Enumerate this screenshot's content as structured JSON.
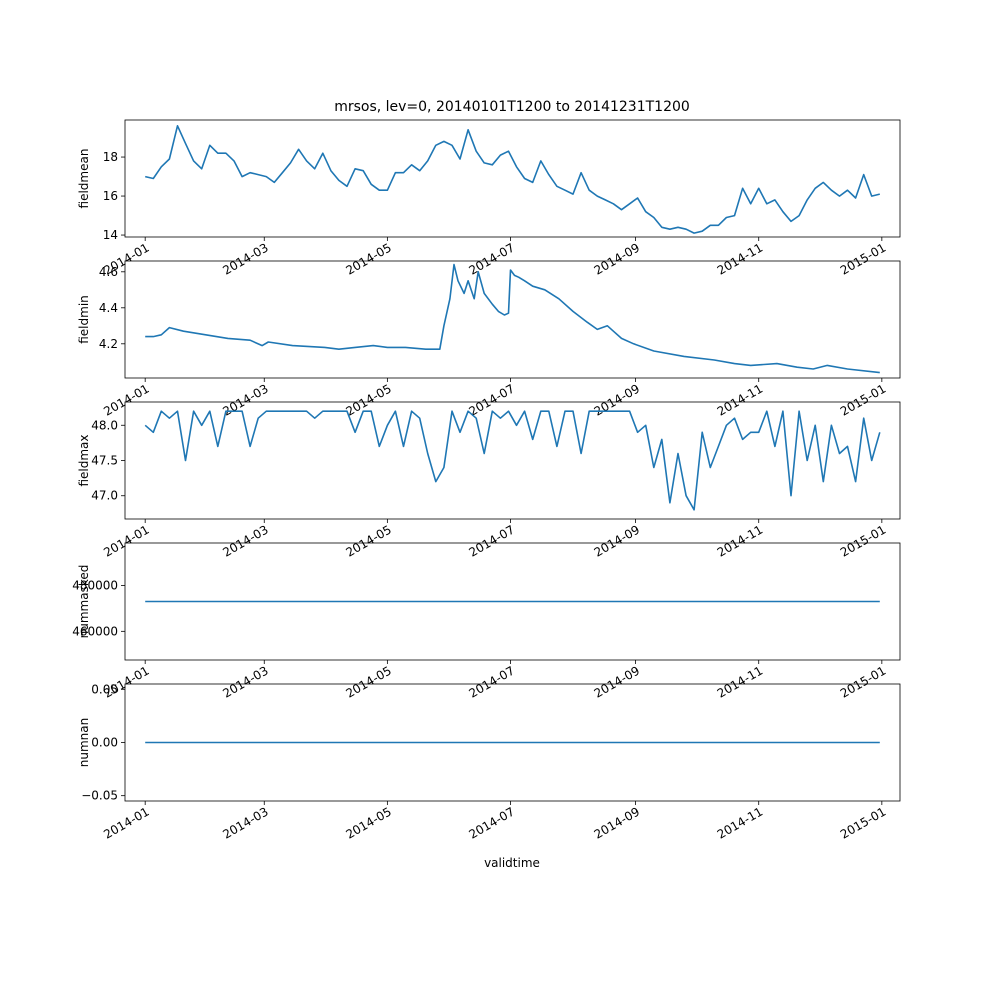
{
  "figure": {
    "title": "mrsos, lev=0, 20140101T1200 to 20141231T1200",
    "xlabel": "validtime",
    "line_color": "#1f77b4",
    "x_tick_labels": [
      "2014-01",
      "2014-03",
      "2014-05",
      "2014-07",
      "2014-09",
      "2014-11",
      "2015-01"
    ]
  },
  "chart_data": [
    {
      "type": "line",
      "ylabel": "fieldmean",
      "xlim": [
        "2013-12-22",
        "2015-01-10"
      ],
      "ylim": [
        13.9,
        19.9
      ],
      "yticks": [
        14,
        16,
        18
      ],
      "ytick_labels": [
        "14",
        "16",
        "18"
      ],
      "x": [
        "2014-01-01",
        "2014-01-05",
        "2014-01-09",
        "2014-01-13",
        "2014-01-17",
        "2014-01-21",
        "2014-01-25",
        "2014-01-29",
        "2014-02-02",
        "2014-02-06",
        "2014-02-10",
        "2014-02-14",
        "2014-02-18",
        "2014-02-22",
        "2014-02-26",
        "2014-03-02",
        "2014-03-06",
        "2014-03-10",
        "2014-03-14",
        "2014-03-18",
        "2014-03-22",
        "2014-03-26",
        "2014-03-30",
        "2014-04-03",
        "2014-04-07",
        "2014-04-11",
        "2014-04-15",
        "2014-04-19",
        "2014-04-23",
        "2014-04-27",
        "2014-05-01",
        "2014-05-05",
        "2014-05-09",
        "2014-05-13",
        "2014-05-17",
        "2014-05-21",
        "2014-05-25",
        "2014-05-29",
        "2014-06-02",
        "2014-06-06",
        "2014-06-10",
        "2014-06-14",
        "2014-06-18",
        "2014-06-22",
        "2014-06-26",
        "2014-06-30",
        "2014-07-04",
        "2014-07-08",
        "2014-07-12",
        "2014-07-16",
        "2014-07-20",
        "2014-07-24",
        "2014-07-28",
        "2014-08-01",
        "2014-08-05",
        "2014-08-09",
        "2014-08-13",
        "2014-08-17",
        "2014-08-21",
        "2014-08-25",
        "2014-08-29",
        "2014-09-02",
        "2014-09-06",
        "2014-09-10",
        "2014-09-14",
        "2014-09-18",
        "2014-09-22",
        "2014-09-26",
        "2014-09-30",
        "2014-10-04",
        "2014-10-08",
        "2014-10-12",
        "2014-10-16",
        "2014-10-20",
        "2014-10-24",
        "2014-10-28",
        "2014-11-01",
        "2014-11-05",
        "2014-11-09",
        "2014-11-13",
        "2014-11-17",
        "2014-11-21",
        "2014-11-25",
        "2014-11-29",
        "2014-12-03",
        "2014-12-07",
        "2014-12-11",
        "2014-12-15",
        "2014-12-19",
        "2014-12-23",
        "2014-12-27",
        "2014-12-31"
      ],
      "y": [
        17.0,
        16.9,
        17.5,
        17.9,
        19.6,
        18.7,
        17.8,
        17.4,
        18.6,
        18.2,
        18.2,
        17.8,
        17.0,
        17.2,
        17.1,
        17.0,
        16.7,
        17.2,
        17.7,
        18.4,
        17.8,
        17.4,
        18.2,
        17.3,
        16.8,
        16.5,
        17.4,
        17.3,
        16.6,
        16.3,
        16.3,
        17.2,
        17.2,
        17.6,
        17.3,
        17.8,
        18.6,
        18.8,
        18.6,
        17.9,
        19.4,
        18.3,
        17.7,
        17.6,
        18.1,
        18.3,
        17.5,
        16.9,
        16.7,
        17.8,
        17.1,
        16.5,
        16.3,
        16.1,
        17.2,
        16.3,
        16.0,
        15.8,
        15.6,
        15.3,
        15.6,
        15.9,
        15.2,
        14.9,
        14.4,
        14.3,
        14.4,
        14.3,
        14.1,
        14.2,
        14.5,
        14.5,
        14.9,
        15.0,
        16.4,
        15.6,
        16.4,
        15.6,
        15.8,
        15.2,
        14.7,
        15.0,
        15.8,
        16.4,
        16.7,
        16.3,
        16.0,
        16.3,
        15.9,
        17.1,
        16.0,
        16.1
      ]
    },
    {
      "type": "line",
      "ylabel": "fieldmin",
      "xlim": [
        "2013-12-22",
        "2015-01-10"
      ],
      "ylim": [
        4.01,
        4.66
      ],
      "yticks": [
        4.2,
        4.4,
        4.6
      ],
      "ytick_labels": [
        "4.2",
        "4.4",
        "4.6"
      ],
      "x": [
        "2014-01-01",
        "2014-01-05",
        "2014-01-09",
        "2014-01-13",
        "2014-01-20",
        "2014-01-31",
        "2014-02-11",
        "2014-02-22",
        "2014-02-28",
        "2014-03-03",
        "2014-03-15",
        "2014-03-31",
        "2014-04-07",
        "2014-04-15",
        "2014-04-24",
        "2014-05-01",
        "2014-05-10",
        "2014-05-20",
        "2014-05-27",
        "2014-05-29",
        "2014-06-01",
        "2014-06-03",
        "2014-06-05",
        "2014-06-08",
        "2014-06-10",
        "2014-06-13",
        "2014-06-15",
        "2014-06-18",
        "2014-06-22",
        "2014-06-25",
        "2014-06-28",
        "2014-06-30",
        "2014-07-01",
        "2014-07-03",
        "2014-07-05",
        "2014-07-08",
        "2014-07-12",
        "2014-07-18",
        "2014-07-25",
        "2014-08-01",
        "2014-08-08",
        "2014-08-13",
        "2014-08-18",
        "2014-08-21",
        "2014-08-25",
        "2014-08-31",
        "2014-09-10",
        "2014-09-25",
        "2014-10-10",
        "2014-10-20",
        "2014-10-28",
        "2014-11-10",
        "2014-11-20",
        "2014-11-28",
        "2014-12-05",
        "2014-12-15",
        "2014-12-31"
      ],
      "y": [
        4.24,
        4.24,
        4.25,
        4.29,
        4.27,
        4.25,
        4.23,
        4.22,
        4.19,
        4.21,
        4.19,
        4.18,
        4.17,
        4.18,
        4.19,
        4.18,
        4.18,
        4.17,
        4.17,
        4.3,
        4.45,
        4.64,
        4.55,
        4.48,
        4.55,
        4.45,
        4.6,
        4.48,
        4.42,
        4.38,
        4.36,
        4.37,
        4.61,
        4.58,
        4.57,
        4.55,
        4.52,
        4.5,
        4.45,
        4.38,
        4.32,
        4.28,
        4.3,
        4.27,
        4.23,
        4.2,
        4.16,
        4.13,
        4.11,
        4.09,
        4.08,
        4.09,
        4.07,
        4.06,
        4.08,
        4.06,
        4.04
      ]
    },
    {
      "type": "line",
      "ylabel": "fieldmax",
      "xlim": [
        "2013-12-22",
        "2015-01-10"
      ],
      "ylim": [
        46.67,
        48.33
      ],
      "yticks": [
        47.0,
        47.5,
        48.0
      ],
      "ytick_labels": [
        "47.0",
        "47.5",
        "48.0"
      ],
      "x": [
        "2014-01-01",
        "2014-01-05",
        "2014-01-09",
        "2014-01-13",
        "2014-01-17",
        "2014-01-21",
        "2014-01-25",
        "2014-01-29",
        "2014-02-02",
        "2014-02-06",
        "2014-02-10",
        "2014-02-14",
        "2014-02-18",
        "2014-02-22",
        "2014-02-26",
        "2014-03-02",
        "2014-03-06",
        "2014-03-10",
        "2014-03-14",
        "2014-03-18",
        "2014-03-22",
        "2014-03-26",
        "2014-03-30",
        "2014-04-03",
        "2014-04-07",
        "2014-04-11",
        "2014-04-15",
        "2014-04-19",
        "2014-04-23",
        "2014-04-27",
        "2014-05-01",
        "2014-05-05",
        "2014-05-09",
        "2014-05-13",
        "2014-05-17",
        "2014-05-21",
        "2014-05-25",
        "2014-05-29",
        "2014-06-02",
        "2014-06-06",
        "2014-06-10",
        "2014-06-14",
        "2014-06-18",
        "2014-06-22",
        "2014-06-26",
        "2014-06-30",
        "2014-07-04",
        "2014-07-08",
        "2014-07-12",
        "2014-07-16",
        "2014-07-20",
        "2014-07-24",
        "2014-07-28",
        "2014-08-01",
        "2014-08-05",
        "2014-08-09",
        "2014-08-13",
        "2014-08-17",
        "2014-08-21",
        "2014-08-25",
        "2014-08-29",
        "2014-09-02",
        "2014-09-06",
        "2014-09-10",
        "2014-09-14",
        "2014-09-18",
        "2014-09-22",
        "2014-09-26",
        "2014-09-30",
        "2014-10-04",
        "2014-10-08",
        "2014-10-12",
        "2014-10-16",
        "2014-10-20",
        "2014-10-24",
        "2014-10-28",
        "2014-11-01",
        "2014-11-05",
        "2014-11-09",
        "2014-11-13",
        "2014-11-17",
        "2014-11-21",
        "2014-11-25",
        "2014-11-29",
        "2014-12-03",
        "2014-12-07",
        "2014-12-11",
        "2014-12-15",
        "2014-12-19",
        "2014-12-23",
        "2014-12-27",
        "2014-12-31"
      ],
      "y": [
        48.0,
        47.9,
        48.2,
        48.1,
        48.2,
        47.5,
        48.2,
        48.0,
        48.2,
        47.7,
        48.2,
        48.2,
        48.2,
        47.7,
        48.1,
        48.2,
        48.2,
        48.2,
        48.2,
        48.2,
        48.2,
        48.1,
        48.2,
        48.2,
        48.2,
        48.2,
        47.9,
        48.2,
        48.2,
        47.7,
        48.0,
        48.2,
        47.7,
        48.2,
        48.1,
        47.6,
        47.2,
        47.4,
        48.2,
        47.9,
        48.2,
        48.1,
        47.6,
        48.2,
        48.1,
        48.2,
        48.0,
        48.2,
        47.8,
        48.2,
        48.2,
        47.7,
        48.2,
        48.2,
        47.6,
        48.2,
        48.2,
        48.2,
        48.2,
        48.2,
        48.2,
        47.9,
        48.0,
        47.4,
        47.8,
        46.9,
        47.6,
        47.0,
        46.8,
        47.9,
        47.4,
        47.7,
        48.0,
        48.1,
        47.8,
        47.9,
        47.9,
        48.2,
        47.7,
        48.2,
        47.0,
        48.2,
        47.5,
        48.0,
        47.2,
        48.0,
        47.6,
        47.7,
        47.2,
        48.1,
        47.5,
        47.9
      ]
    },
    {
      "type": "line",
      "ylabel": "nummasked",
      "xlim": [
        "2013-12-22",
        "2015-01-10"
      ],
      "ylim": [
        447500,
        498500
      ],
      "yticks": [
        460000,
        480000
      ],
      "ytick_labels": [
        "460000",
        "480000"
      ],
      "x": [
        "2014-01-01",
        "2014-12-31"
      ],
      "y": [
        473000,
        473000
      ]
    },
    {
      "type": "line",
      "ylabel": "numnan",
      "xlim": [
        "2013-12-22",
        "2015-01-10"
      ],
      "ylim": [
        -0.055,
        0.055
      ],
      "yticks": [
        -0.05,
        0.0,
        0.05
      ],
      "ytick_labels": [
        "−0.05",
        "0.00",
        "0.05"
      ],
      "x": [
        "2014-01-01",
        "2014-12-31"
      ],
      "y": [
        0,
        0
      ]
    }
  ]
}
